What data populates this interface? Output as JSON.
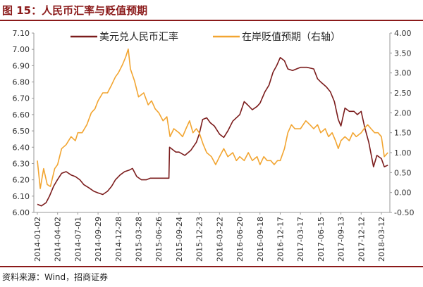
{
  "title": "图 15：人民币汇率与贬值预期",
  "source": "资料来源：Wind，招商证券",
  "colors": {
    "title": "#8B1A1A",
    "usdcny": "#7B1C1C",
    "expectation": "#F2A531"
  },
  "chart_data": {
    "type": "line",
    "x_ticks": [
      "2014-01-02",
      "2014-04-02",
      "2014-07-01",
      "2014-09-29",
      "2014-12-28",
      "2015-03-28",
      "2015-06-26",
      "2015-09-24",
      "2015-12-23",
      "2016-03-22",
      "2016-06-20",
      "2016-09-18",
      "2016-12-17",
      "2017-03-17",
      "2017-06-15",
      "2017-09-13",
      "2017-12-12",
      "2018-03-12"
    ],
    "y_left": {
      "min": 6.0,
      "max": 7.1,
      "ticks": [
        "6.00",
        "6.10",
        "6.20",
        "6.30",
        "6.40",
        "6.50",
        "6.60",
        "6.70",
        "6.80",
        "6.90",
        "7.00",
        "7.10"
      ]
    },
    "y_right": {
      "min": -0.5,
      "max": 4.0,
      "ticks": [
        "-0.50",
        "0.00",
        "0.50",
        "1.00",
        "1.50",
        "2.00",
        "2.50",
        "3.00",
        "3.50",
        "4.00"
      ]
    },
    "legend_placement": "top",
    "series": [
      {
        "name": "美元兑人民币汇率",
        "axis": "left",
        "color": "#7B1C1C",
        "points": [
          [
            "2014-01-02",
            6.05
          ],
          [
            "2014-01-20",
            6.04
          ],
          [
            "2014-02-10",
            6.06
          ],
          [
            "2014-02-25",
            6.1
          ],
          [
            "2014-03-15",
            6.16
          ],
          [
            "2014-04-01",
            6.2
          ],
          [
            "2014-04-20",
            6.24
          ],
          [
            "2014-05-10",
            6.25
          ],
          [
            "2014-06-01",
            6.23
          ],
          [
            "2014-06-20",
            6.22
          ],
          [
            "2014-07-10",
            6.2
          ],
          [
            "2014-07-28",
            6.17
          ],
          [
            "2014-08-20",
            6.15
          ],
          [
            "2014-09-10",
            6.13
          ],
          [
            "2014-09-29",
            6.12
          ],
          [
            "2014-10-20",
            6.11
          ],
          [
            "2014-11-10",
            6.13
          ],
          [
            "2014-11-28",
            6.16
          ],
          [
            "2014-12-15",
            6.2
          ],
          [
            "2015-01-05",
            6.23
          ],
          [
            "2015-01-25",
            6.25
          ],
          [
            "2015-02-15",
            6.26
          ],
          [
            "2015-03-01",
            6.27
          ],
          [
            "2015-03-20",
            6.22
          ],
          [
            "2015-04-10",
            6.2
          ],
          [
            "2015-05-01",
            6.2
          ],
          [
            "2015-05-20",
            6.21
          ],
          [
            "2015-06-10",
            6.21
          ],
          [
            "2015-07-05",
            6.21
          ],
          [
            "2015-08-10",
            6.21
          ],
          [
            "2015-08-13",
            6.4
          ],
          [
            "2015-09-10",
            6.37
          ],
          [
            "2015-09-24",
            6.37
          ],
          [
            "2015-10-20",
            6.35
          ],
          [
            "2015-11-15",
            6.38
          ],
          [
            "2015-12-10",
            6.43
          ],
          [
            "2015-12-23",
            6.48
          ],
          [
            "2016-01-07",
            6.57
          ],
          [
            "2016-01-25",
            6.58
          ],
          [
            "2016-02-10",
            6.55
          ],
          [
            "2016-02-28",
            6.53
          ],
          [
            "2016-03-22",
            6.48
          ],
          [
            "2016-04-10",
            6.46
          ],
          [
            "2016-04-28",
            6.5
          ],
          [
            "2016-05-20",
            6.56
          ],
          [
            "2016-06-20",
            6.6
          ],
          [
            "2016-07-10",
            6.68
          ],
          [
            "2016-07-25",
            6.66
          ],
          [
            "2016-08-15",
            6.63
          ],
          [
            "2016-09-05",
            6.65
          ],
          [
            "2016-09-18",
            6.67
          ],
          [
            "2016-10-10",
            6.74
          ],
          [
            "2016-10-28",
            6.78
          ],
          [
            "2016-11-15",
            6.86
          ],
          [
            "2016-12-01",
            6.9
          ],
          [
            "2016-12-17",
            6.95
          ],
          [
            "2017-01-05",
            6.93
          ],
          [
            "2017-01-20",
            6.88
          ],
          [
            "2017-02-10",
            6.87
          ],
          [
            "2017-03-17",
            6.89
          ],
          [
            "2017-04-15",
            6.89
          ],
          [
            "2017-05-15",
            6.88
          ],
          [
            "2017-06-01",
            6.82
          ],
          [
            "2017-06-15",
            6.8
          ],
          [
            "2017-07-10",
            6.77
          ],
          [
            "2017-07-28",
            6.74
          ],
          [
            "2017-08-15",
            6.68
          ],
          [
            "2017-09-01",
            6.57
          ],
          [
            "2017-09-13",
            6.53
          ],
          [
            "2017-10-01",
            6.64
          ],
          [
            "2017-10-20",
            6.62
          ],
          [
            "2017-11-10",
            6.62
          ],
          [
            "2017-11-25",
            6.6
          ],
          [
            "2017-12-12",
            6.62
          ],
          [
            "2017-12-28",
            6.52
          ],
          [
            "2018-01-15",
            6.43
          ],
          [
            "2018-02-05",
            6.28
          ],
          [
            "2018-02-20",
            6.35
          ],
          [
            "2018-03-12",
            6.33
          ],
          [
            "2018-03-25",
            6.28
          ],
          [
            "2018-04-10",
            6.29
          ]
        ]
      },
      {
        "name": "在岸贬值预期（右轴）",
        "axis": "right",
        "color": "#F2A531",
        "points": [
          [
            "2014-01-02",
            0.8
          ],
          [
            "2014-01-15",
            0.1
          ],
          [
            "2014-01-30",
            0.6
          ],
          [
            "2014-02-15",
            0.2
          ],
          [
            "2014-03-01",
            0.15
          ],
          [
            "2014-03-20",
            0.6
          ],
          [
            "2014-04-02",
            0.7
          ],
          [
            "2014-04-20",
            1.1
          ],
          [
            "2014-05-10",
            1.2
          ],
          [
            "2014-06-01",
            1.4
          ],
          [
            "2014-06-20",
            1.3
          ],
          [
            "2014-07-01",
            1.5
          ],
          [
            "2014-07-20",
            1.5
          ],
          [
            "2014-08-10",
            1.7
          ],
          [
            "2014-08-30",
            2.0
          ],
          [
            "2014-09-15",
            2.1
          ],
          [
            "2014-09-29",
            2.3
          ],
          [
            "2014-10-20",
            2.5
          ],
          [
            "2014-11-10",
            2.5
          ],
          [
            "2014-11-28",
            2.7
          ],
          [
            "2014-12-15",
            2.9
          ],
          [
            "2014-12-28",
            3.0
          ],
          [
            "2015-01-15",
            3.2
          ],
          [
            "2015-01-30",
            3.4
          ],
          [
            "2015-02-10",
            3.6
          ],
          [
            "2015-02-20",
            3.1
          ],
          [
            "2015-03-10",
            2.8
          ],
          [
            "2015-03-28",
            2.4
          ],
          [
            "2015-04-20",
            2.5
          ],
          [
            "2015-05-10",
            2.2
          ],
          [
            "2015-05-25",
            2.3
          ],
          [
            "2015-06-10",
            2.1
          ],
          [
            "2015-06-26",
            2.0
          ],
          [
            "2015-07-15",
            1.8
          ],
          [
            "2015-08-01",
            1.9
          ],
          [
            "2015-08-15",
            1.4
          ],
          [
            "2015-09-01",
            1.6
          ],
          [
            "2015-09-24",
            1.5
          ],
          [
            "2015-10-10",
            1.4
          ],
          [
            "2015-10-25",
            1.6
          ],
          [
            "2015-11-10",
            1.8
          ],
          [
            "2015-11-25",
            1.5
          ],
          [
            "2015-12-10",
            1.6
          ],
          [
            "2015-12-23",
            1.5
          ],
          [
            "2016-01-10",
            1.2
          ],
          [
            "2016-01-25",
            1.0
          ],
          [
            "2016-02-15",
            0.9
          ],
          [
            "2016-03-05",
            0.7
          ],
          [
            "2016-03-22",
            0.9
          ],
          [
            "2016-04-10",
            1.1
          ],
          [
            "2016-04-28",
            0.9
          ],
          [
            "2016-05-20",
            1.0
          ],
          [
            "2016-06-05",
            0.8
          ],
          [
            "2016-06-20",
            0.9
          ],
          [
            "2016-07-10",
            0.8
          ],
          [
            "2016-07-28",
            1.0
          ],
          [
            "2016-08-15",
            0.8
          ],
          [
            "2016-09-05",
            0.9
          ],
          [
            "2016-09-18",
            0.7
          ],
          [
            "2016-10-05",
            0.9
          ],
          [
            "2016-10-20",
            0.8
          ],
          [
            "2016-11-05",
            0.8
          ],
          [
            "2016-11-20",
            0.7
          ],
          [
            "2016-12-05",
            0.8
          ],
          [
            "2016-12-17",
            0.8
          ],
          [
            "2017-01-05",
            1.1
          ],
          [
            "2017-01-20",
            1.5
          ],
          [
            "2017-02-05",
            1.7
          ],
          [
            "2017-02-20",
            1.6
          ],
          [
            "2017-03-17",
            1.6
          ],
          [
            "2017-04-10",
            1.8
          ],
          [
            "2017-04-28",
            1.7
          ],
          [
            "2017-05-15",
            1.6
          ],
          [
            "2017-06-01",
            1.7
          ],
          [
            "2017-06-15",
            1.5
          ],
          [
            "2017-07-05",
            1.6
          ],
          [
            "2017-07-20",
            1.4
          ],
          [
            "2017-08-05",
            1.5
          ],
          [
            "2017-08-20",
            1.3
          ],
          [
            "2017-09-01",
            1.1
          ],
          [
            "2017-09-13",
            1.3
          ],
          [
            "2017-10-01",
            1.4
          ],
          [
            "2017-10-20",
            1.3
          ],
          [
            "2017-11-05",
            1.5
          ],
          [
            "2017-11-20",
            1.4
          ],
          [
            "2017-12-12",
            1.5
          ],
          [
            "2017-12-25",
            1.6
          ],
          [
            "2018-01-10",
            1.7
          ],
          [
            "2018-01-25",
            1.6
          ],
          [
            "2018-02-10",
            1.5
          ],
          [
            "2018-02-25",
            1.5
          ],
          [
            "2018-03-12",
            1.4
          ],
          [
            "2018-03-25",
            0.9
          ],
          [
            "2018-04-10",
            1.0
          ]
        ]
      }
    ]
  }
}
